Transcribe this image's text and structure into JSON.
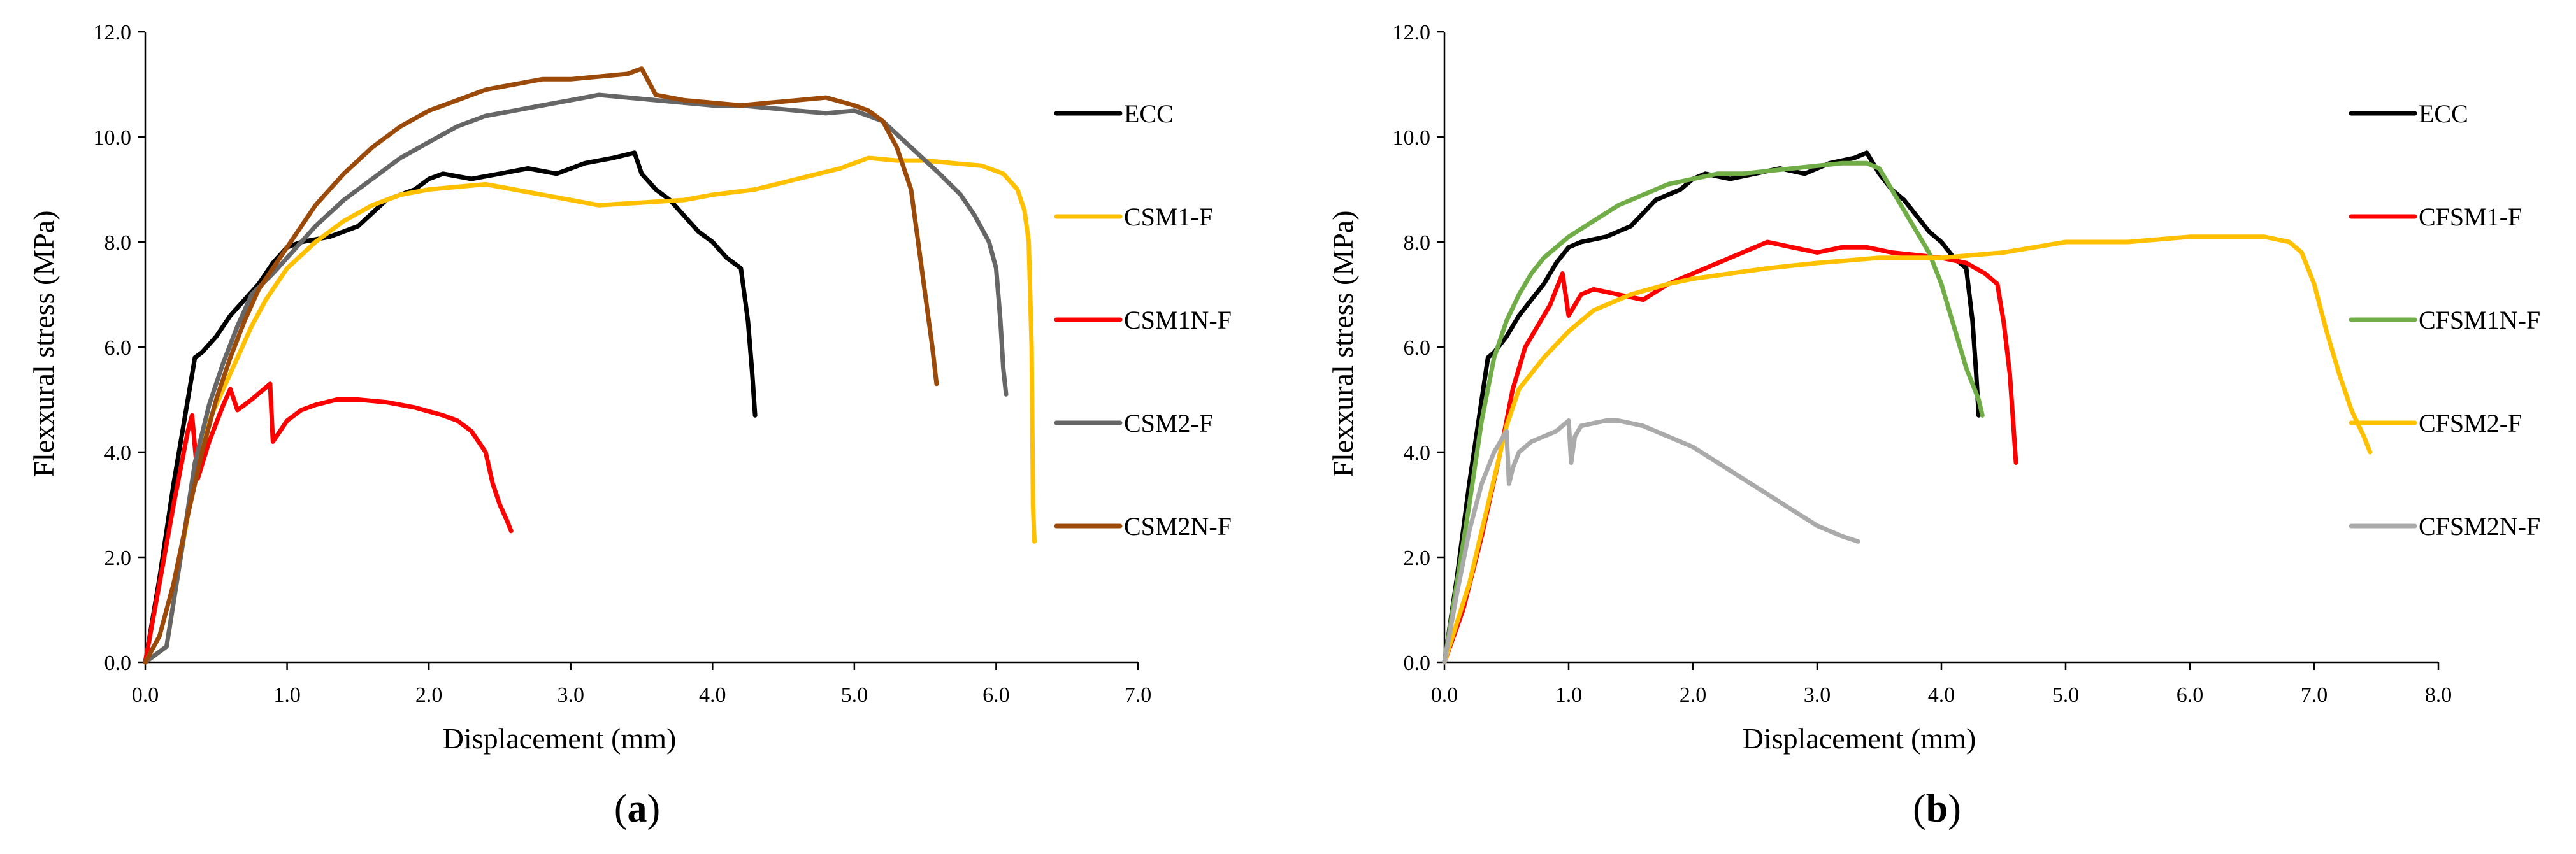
{
  "chart_data": [
    {
      "panel_label_open": "(",
      "panel_label_letter": "a",
      "panel_label_close": ")",
      "type": "line",
      "xlabel": "Displacement (mm)",
      "ylabel": "Flexxural stress (MPa)",
      "xlim": [
        0,
        7
      ],
      "ylim": [
        0,
        12
      ],
      "xticks": [
        "0.0",
        "1.0",
        "2.0",
        "3.0",
        "4.0",
        "5.0",
        "6.0",
        "7.0"
      ],
      "yticks": [
        "0.0",
        "2.0",
        "4.0",
        "6.0",
        "8.0",
        "10.0",
        "12.0"
      ],
      "legend_position": "right",
      "series": [
        {
          "name": "ECC",
          "color": "#000000",
          "x": [
            0,
            0.1,
            0.2,
            0.3,
            0.35,
            0.4,
            0.5,
            0.6,
            0.7,
            0.8,
            0.9,
            1.0,
            1.1,
            1.2,
            1.3,
            1.5,
            1.7,
            1.9,
            2.0,
            2.1,
            2.2,
            2.3,
            2.5,
            2.7,
            2.9,
            3.1,
            3.3,
            3.45,
            3.5,
            3.6,
            3.7,
            3.8,
            3.9,
            4.0,
            4.1,
            4.2,
            4.25,
            4.28,
            4.3
          ],
          "y": [
            0,
            1.6,
            3.4,
            5.0,
            5.8,
            5.9,
            6.2,
            6.6,
            6.9,
            7.2,
            7.6,
            7.9,
            8.0,
            8.05,
            8.1,
            8.3,
            8.8,
            9.0,
            9.2,
            9.3,
            9.25,
            9.2,
            9.3,
            9.4,
            9.3,
            9.5,
            9.6,
            9.7,
            9.3,
            9.0,
            8.8,
            8.5,
            8.2,
            8.0,
            7.7,
            7.5,
            6.5,
            5.5,
            4.7
          ]
        },
        {
          "name": "CSM1-F",
          "color": "#FFC000",
          "x": [
            0,
            0.15,
            0.25,
            0.35,
            0.45,
            0.55,
            0.65,
            0.75,
            0.85,
            1.0,
            1.2,
            1.4,
            1.6,
            1.8,
            2.0,
            2.2,
            2.4,
            2.6,
            2.8,
            3.0,
            3.2,
            3.5,
            3.8,
            4.0,
            4.3,
            4.6,
            4.9,
            5.1,
            5.3,
            5.5,
            5.7,
            5.9,
            6.05,
            6.15,
            6.2,
            6.23,
            6.25,
            6.26,
            6.27
          ],
          "y": [
            0,
            0.3,
            2.0,
            3.6,
            4.6,
            5.2,
            5.8,
            6.4,
            6.9,
            7.5,
            8.0,
            8.4,
            8.7,
            8.9,
            9.0,
            9.05,
            9.1,
            9.0,
            8.9,
            8.8,
            8.7,
            8.75,
            8.8,
            8.9,
            9.0,
            9.2,
            9.4,
            9.6,
            9.55,
            9.55,
            9.5,
            9.45,
            9.3,
            9.0,
            8.6,
            8.0,
            6.0,
            3.0,
            2.3
          ]
        },
        {
          "name": "CSM1N-F",
          "color": "#FF0000",
          "x": [
            0,
            0.1,
            0.2,
            0.3,
            0.33,
            0.37,
            0.45,
            0.55,
            0.6,
            0.65,
            0.75,
            0.88,
            0.9,
            1.0,
            1.1,
            1.2,
            1.35,
            1.5,
            1.7,
            1.9,
            2.1,
            2.2,
            2.3,
            2.4,
            2.45,
            2.5,
            2.55,
            2.58
          ],
          "y": [
            0,
            1.5,
            3.0,
            4.4,
            4.7,
            3.5,
            4.2,
            4.9,
            5.2,
            4.8,
            5.0,
            5.3,
            4.2,
            4.6,
            4.8,
            4.9,
            5.0,
            5.0,
            4.95,
            4.85,
            4.7,
            4.6,
            4.4,
            4.0,
            3.4,
            3.0,
            2.7,
            2.5
          ]
        },
        {
          "name": "CSM2-F",
          "color": "#666666",
          "x": [
            0,
            0.15,
            0.25,
            0.35,
            0.45,
            0.55,
            0.65,
            0.75,
            0.9,
            1.0,
            1.2,
            1.4,
            1.6,
            1.8,
            2.0,
            2.2,
            2.4,
            2.6,
            2.8,
            3.0,
            3.2,
            3.4,
            3.6,
            3.8,
            4.0,
            4.2,
            4.4,
            4.6,
            4.8,
            5.0,
            5.2,
            5.4,
            5.6,
            5.75,
            5.85,
            5.95,
            6.0,
            6.03,
            6.05,
            6.07
          ],
          "y": [
            0,
            0.3,
            2.0,
            3.8,
            4.9,
            5.7,
            6.4,
            7.0,
            7.4,
            7.7,
            8.3,
            8.8,
            9.2,
            9.6,
            9.9,
            10.2,
            10.4,
            10.5,
            10.6,
            10.7,
            10.8,
            10.75,
            10.7,
            10.65,
            10.6,
            10.6,
            10.55,
            10.5,
            10.45,
            10.5,
            10.3,
            9.8,
            9.3,
            8.9,
            8.5,
            8.0,
            7.5,
            6.5,
            5.6,
            5.1
          ]
        },
        {
          "name": "CSM2N-F",
          "color": "#9C4A0A",
          "x": [
            0,
            0.1,
            0.2,
            0.3,
            0.4,
            0.5,
            0.6,
            0.7,
            0.8,
            0.9,
            1.0,
            1.2,
            1.4,
            1.6,
            1.8,
            2.0,
            2.2,
            2.4,
            2.6,
            2.8,
            3.0,
            3.2,
            3.4,
            3.5,
            3.6,
            3.8,
            4.0,
            4.2,
            4.4,
            4.6,
            4.8,
            5.0,
            5.1,
            5.2,
            5.3,
            5.4,
            5.45,
            5.5,
            5.55,
            5.58
          ],
          "y": [
            0,
            0.5,
            1.5,
            2.8,
            4.0,
            5.0,
            5.8,
            6.5,
            7.1,
            7.5,
            7.9,
            8.7,
            9.3,
            9.8,
            10.2,
            10.5,
            10.7,
            10.9,
            11.0,
            11.1,
            11.1,
            11.15,
            11.2,
            11.3,
            10.8,
            10.7,
            10.65,
            10.6,
            10.65,
            10.7,
            10.75,
            10.6,
            10.5,
            10.3,
            9.8,
            9.0,
            8.0,
            7.0,
            6.0,
            5.3
          ]
        }
      ]
    },
    {
      "panel_label_open": "(",
      "panel_label_letter": "b",
      "panel_label_close": ")",
      "type": "line",
      "xlabel": "Displacement (mm)",
      "ylabel": "Flexxural stress (MPa)",
      "xlim": [
        0,
        8
      ],
      "ylim": [
        0,
        12
      ],
      "xticks": [
        "0.0",
        "1.0",
        "2.0",
        "3.0",
        "4.0",
        "5.0",
        "6.0",
        "7.0",
        "8.0"
      ],
      "yticks": [
        "0.0",
        "2.0",
        "4.0",
        "6.0",
        "8.0",
        "10.0",
        "12.0"
      ],
      "legend_position": "right",
      "series": [
        {
          "name": "ECC",
          "color": "#000000",
          "x": [
            0,
            0.1,
            0.2,
            0.3,
            0.35,
            0.4,
            0.5,
            0.6,
            0.7,
            0.8,
            0.9,
            1.0,
            1.1,
            1.2,
            1.3,
            1.5,
            1.7,
            1.9,
            2.0,
            2.1,
            2.2,
            2.3,
            2.5,
            2.7,
            2.9,
            3.1,
            3.3,
            3.4,
            3.5,
            3.6,
            3.7,
            3.8,
            3.9,
            4.0,
            4.1,
            4.2,
            4.25,
            4.28,
            4.3
          ],
          "y": [
            0,
            1.6,
            3.4,
            5.0,
            5.8,
            5.9,
            6.2,
            6.6,
            6.9,
            7.2,
            7.6,
            7.9,
            8.0,
            8.05,
            8.1,
            8.3,
            8.8,
            9.0,
            9.2,
            9.3,
            9.25,
            9.2,
            9.3,
            9.4,
            9.3,
            9.5,
            9.6,
            9.7,
            9.3,
            9.0,
            8.8,
            8.5,
            8.2,
            8.0,
            7.7,
            7.5,
            6.5,
            5.5,
            4.7
          ]
        },
        {
          "name": "CFSM1-F",
          "color": "#FF0000",
          "x": [
            0,
            0.15,
            0.3,
            0.45,
            0.55,
            0.65,
            0.75,
            0.85,
            0.95,
            1.0,
            1.1,
            1.2,
            1.4,
            1.6,
            1.8,
            2.0,
            2.2,
            2.4,
            2.6,
            2.8,
            3.0,
            3.2,
            3.4,
            3.6,
            3.8,
            4.0,
            4.2,
            4.35,
            4.45,
            4.5,
            4.55,
            4.58,
            4.6
          ],
          "y": [
            0,
            1.0,
            2.4,
            4.0,
            5.2,
            6.0,
            6.4,
            6.8,
            7.4,
            6.6,
            7.0,
            7.1,
            7.0,
            6.9,
            7.2,
            7.4,
            7.6,
            7.8,
            8.0,
            7.9,
            7.8,
            7.9,
            7.9,
            7.8,
            7.75,
            7.7,
            7.6,
            7.4,
            7.2,
            6.5,
            5.5,
            4.5,
            3.8
          ]
        },
        {
          "name": "CFSM1N-F",
          "color": "#70AD47",
          "x": [
            0,
            0.1,
            0.2,
            0.3,
            0.4,
            0.5,
            0.6,
            0.7,
            0.8,
            0.9,
            1.0,
            1.2,
            1.4,
            1.6,
            1.8,
            2.0,
            2.2,
            2.4,
            2.6,
            2.8,
            3.0,
            3.2,
            3.3,
            3.4,
            3.5,
            3.6,
            3.7,
            3.8,
            3.9,
            4.0,
            4.1,
            4.2,
            4.3,
            4.33
          ],
          "y": [
            0,
            1.5,
            3.0,
            4.6,
            5.8,
            6.5,
            7.0,
            7.4,
            7.7,
            7.9,
            8.1,
            8.4,
            8.7,
            8.9,
            9.1,
            9.2,
            9.3,
            9.3,
            9.35,
            9.4,
            9.45,
            9.5,
            9.5,
            9.5,
            9.4,
            9.0,
            8.6,
            8.2,
            7.8,
            7.2,
            6.4,
            5.6,
            5.0,
            4.7
          ]
        },
        {
          "name": "CFSM2-F",
          "color": "#FFC000",
          "x": [
            0,
            0.2,
            0.4,
            0.5,
            0.6,
            0.8,
            1.0,
            1.2,
            1.5,
            1.8,
            2.0,
            2.3,
            2.6,
            3.0,
            3.5,
            4.0,
            4.5,
            5.0,
            5.5,
            6.0,
            6.3,
            6.6,
            6.8,
            6.9,
            7.0,
            7.1,
            7.2,
            7.3,
            7.4,
            7.45
          ],
          "y": [
            0,
            1.5,
            3.5,
            4.5,
            5.2,
            5.8,
            6.3,
            6.7,
            7.0,
            7.2,
            7.3,
            7.4,
            7.5,
            7.6,
            7.7,
            7.7,
            7.8,
            8.0,
            8.0,
            8.1,
            8.1,
            8.1,
            8.0,
            7.8,
            7.2,
            6.3,
            5.5,
            4.8,
            4.3,
            4.0
          ]
        },
        {
          "name": "CFSM2N-F",
          "color": "#AAAAAA",
          "x": [
            0,
            0.1,
            0.2,
            0.3,
            0.4,
            0.5,
            0.52,
            0.55,
            0.6,
            0.7,
            0.8,
            0.9,
            1.0,
            1.02,
            1.05,
            1.1,
            1.2,
            1.3,
            1.4,
            1.5,
            1.6,
            1.8,
            2.0,
            2.2,
            2.4,
            2.6,
            2.8,
            3.0,
            3.2,
            3.33
          ],
          "y": [
            0,
            1.3,
            2.5,
            3.4,
            4.0,
            4.4,
            3.4,
            3.7,
            4.0,
            4.2,
            4.3,
            4.4,
            4.6,
            3.8,
            4.3,
            4.5,
            4.55,
            4.6,
            4.6,
            4.55,
            4.5,
            4.3,
            4.1,
            3.8,
            3.5,
            3.2,
            2.9,
            2.6,
            2.4,
            2.3
          ]
        }
      ]
    }
  ]
}
